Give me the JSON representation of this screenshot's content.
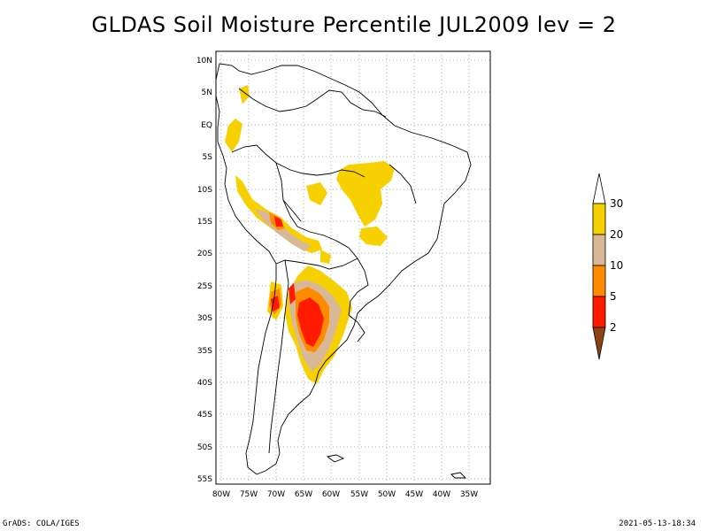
{
  "title": "GLDAS Soil Moisture Percentile JUL2009 lev = 2",
  "footer": {
    "left": "GrADS: COLA/IGES",
    "right": "2021-05-13-18:34"
  },
  "map": {
    "lon_range": [
      -80,
      -30
    ],
    "lat_range": [
      -55,
      10
    ],
    "lon_ticks": [
      "80W",
      "75W",
      "70W",
      "65W",
      "60W",
      "55W",
      "50W",
      "45W",
      "40W",
      "35W"
    ],
    "lat_ticks": [
      "10N",
      "5N",
      "EQ",
      "5S",
      "10S",
      "15S",
      "20S",
      "25S",
      "30S",
      "35S",
      "40S",
      "45S",
      "50S",
      "55S"
    ],
    "grid": true
  },
  "colorbar": {
    "labels": [
      "30",
      "20",
      "10",
      "5",
      "2"
    ],
    "colors": [
      "#f7d000",
      "#d9b896",
      "#ff8c00",
      "#ff1a00",
      "#8b4513"
    ]
  }
}
